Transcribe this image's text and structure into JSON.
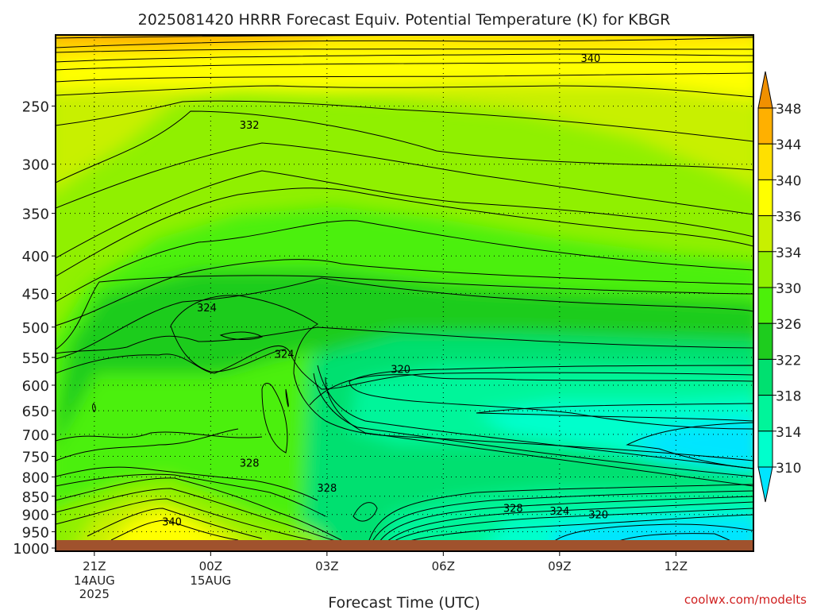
{
  "chart_data": {
    "type": "contour",
    "title": "2025081420 HRRR Forecast Equiv. Potential Temperature (K) for KBGR",
    "xlabel": "Forecast Time (UTC)",
    "ylabel": "",
    "credit": "coolwx.com/modelts",
    "x_ticks": [
      {
        "label": "21Z",
        "date1": "14AUG",
        "date2": "2025",
        "hour": -3
      },
      {
        "label": "00Z",
        "date1": "15AUG",
        "date2": "",
        "hour": 0
      },
      {
        "label": "03Z",
        "date1": "",
        "date2": "",
        "hour": 3
      },
      {
        "label": "06Z",
        "date1": "",
        "date2": "",
        "hour": 6
      },
      {
        "label": "09Z",
        "date1": "",
        "date2": "",
        "hour": 9
      },
      {
        "label": "12Z",
        "date1": "",
        "date2": "",
        "hour": 12
      }
    ],
    "xlim_hours": [
      -4,
      14
    ],
    "y_ticks": [
      250,
      300,
      350,
      400,
      450,
      500,
      550,
      600,
      650,
      700,
      750,
      800,
      850,
      900,
      950,
      1000
    ],
    "ylim_hpa": [
      200,
      1010
    ],
    "yscale": "log-pressure",
    "grid": "dotted",
    "colorbar": {
      "labels": [
        310,
        314,
        318,
        322,
        326,
        330,
        334,
        336,
        340,
        344,
        348
      ],
      "colors": [
        "#00e5ff",
        "#00ffcc",
        "#00f59a",
        "#00e070",
        "#1ecc1e",
        "#4cf00a",
        "#90f000",
        "#c8f000",
        "#ffff00",
        "#ffe000",
        "#ffb000",
        "#f09000"
      ]
    },
    "contour_labels": [
      {
        "value": "340",
        "hour": 9.8,
        "hpa": 215
      },
      {
        "value": "332",
        "hour": 1.0,
        "hpa": 265
      },
      {
        "value": "324",
        "hour": -0.1,
        "hpa": 470
      },
      {
        "value": "324",
        "hour": 1.9,
        "hpa": 544
      },
      {
        "value": "320",
        "hour": 4.9,
        "hpa": 570
      },
      {
        "value": "328",
        "hour": 1.0,
        "hpa": 765
      },
      {
        "value": "328",
        "hour": 3.0,
        "hpa": 827
      },
      {
        "value": "328",
        "hour": 7.8,
        "hpa": 882
      },
      {
        "value": "324",
        "hour": 9.0,
        "hpa": 890
      },
      {
        "value": "320",
        "hour": 10.0,
        "hpa": 900
      },
      {
        "value": "340",
        "hour": -1.0,
        "hpa": 920
      }
    ],
    "colors": {
      "ground": "#a0522d"
    }
  }
}
